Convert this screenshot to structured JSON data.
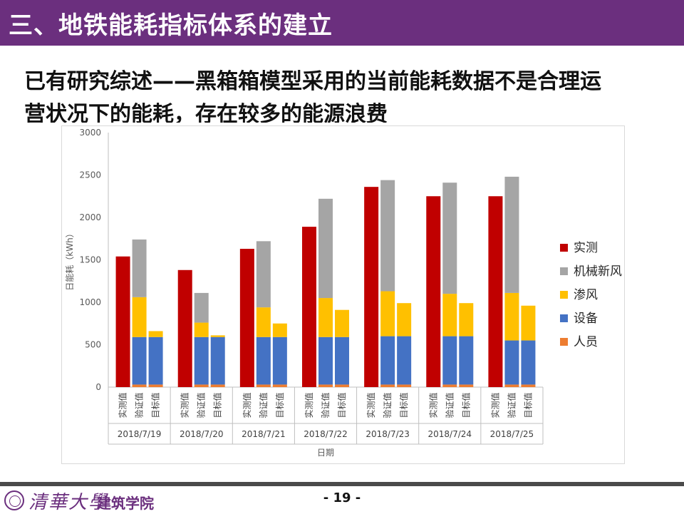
{
  "header": {
    "title": "三、地铁能耗指标体系的建立"
  },
  "subtitle": {
    "line1": "已有研究综述——黑箱箱模型采用的当前能耗数据不是合理运",
    "line2": "营状况下的能耗，存在较多的能源浪费"
  },
  "footer": {
    "logo_text": "清華大學",
    "department": "建筑学院",
    "page": "- 19 -"
  },
  "chart_data": {
    "type": "bar",
    "stacked": true,
    "ylabel": "日能耗（kWh）",
    "xlabel": "日期",
    "ylim": [
      0,
      3000
    ],
    "yticks": [
      "0",
      "500",
      "1000",
      "1500",
      "2000",
      "2500",
      "3000"
    ],
    "grid": false,
    "legend_position": "right",
    "groups": [
      "2018/7/19",
      "2018/7/20",
      "2018/7/21",
      "2018/7/22",
      "2018/7/23",
      "2018/7/24",
      "2018/7/25"
    ],
    "subcategories": [
      "实测值",
      "验证值",
      "目标值"
    ],
    "colors": {
      "实测": "#c00000",
      "机械新风": "#a5a5a5",
      "渗风": "#ffc000",
      "设备": "#4472c4",
      "人员": "#ed7d31"
    },
    "series": [
      {
        "name": "实测",
        "values": [
          [
            1540,
            0,
            0
          ],
          [
            1380,
            0,
            0
          ],
          [
            1630,
            0,
            0
          ],
          [
            1890,
            0,
            0
          ],
          [
            2360,
            0,
            0
          ],
          [
            2250,
            0,
            0
          ],
          [
            2250,
            0,
            0
          ]
        ]
      },
      {
        "name": "机械新风",
        "values": [
          [
            0,
            680,
            0
          ],
          [
            0,
            350,
            0
          ],
          [
            0,
            780,
            0
          ],
          [
            0,
            1170,
            0
          ],
          [
            0,
            1310,
            0
          ],
          [
            0,
            1310,
            0
          ],
          [
            0,
            1370,
            0
          ]
        ]
      },
      {
        "name": "渗风",
        "values": [
          [
            0,
            470,
            70
          ],
          [
            0,
            170,
            20
          ],
          [
            0,
            350,
            160
          ],
          [
            0,
            460,
            320
          ],
          [
            0,
            530,
            390
          ],
          [
            0,
            500,
            390
          ],
          [
            0,
            560,
            410
          ]
        ]
      },
      {
        "name": "设备",
        "values": [
          [
            0,
            560,
            560
          ],
          [
            0,
            560,
            560
          ],
          [
            0,
            560,
            560
          ],
          [
            0,
            560,
            560
          ],
          [
            0,
            570,
            570
          ],
          [
            0,
            570,
            570
          ],
          [
            0,
            520,
            520
          ]
        ]
      },
      {
        "name": "人员",
        "values": [
          [
            0,
            30,
            30
          ],
          [
            0,
            30,
            30
          ],
          [
            0,
            30,
            30
          ],
          [
            0,
            30,
            30
          ],
          [
            0,
            30,
            30
          ],
          [
            0,
            30,
            30
          ],
          [
            0,
            30,
            30
          ]
        ]
      }
    ],
    "legend_order": [
      "实测",
      "机械新风",
      "渗风",
      "设备",
      "人员"
    ]
  }
}
